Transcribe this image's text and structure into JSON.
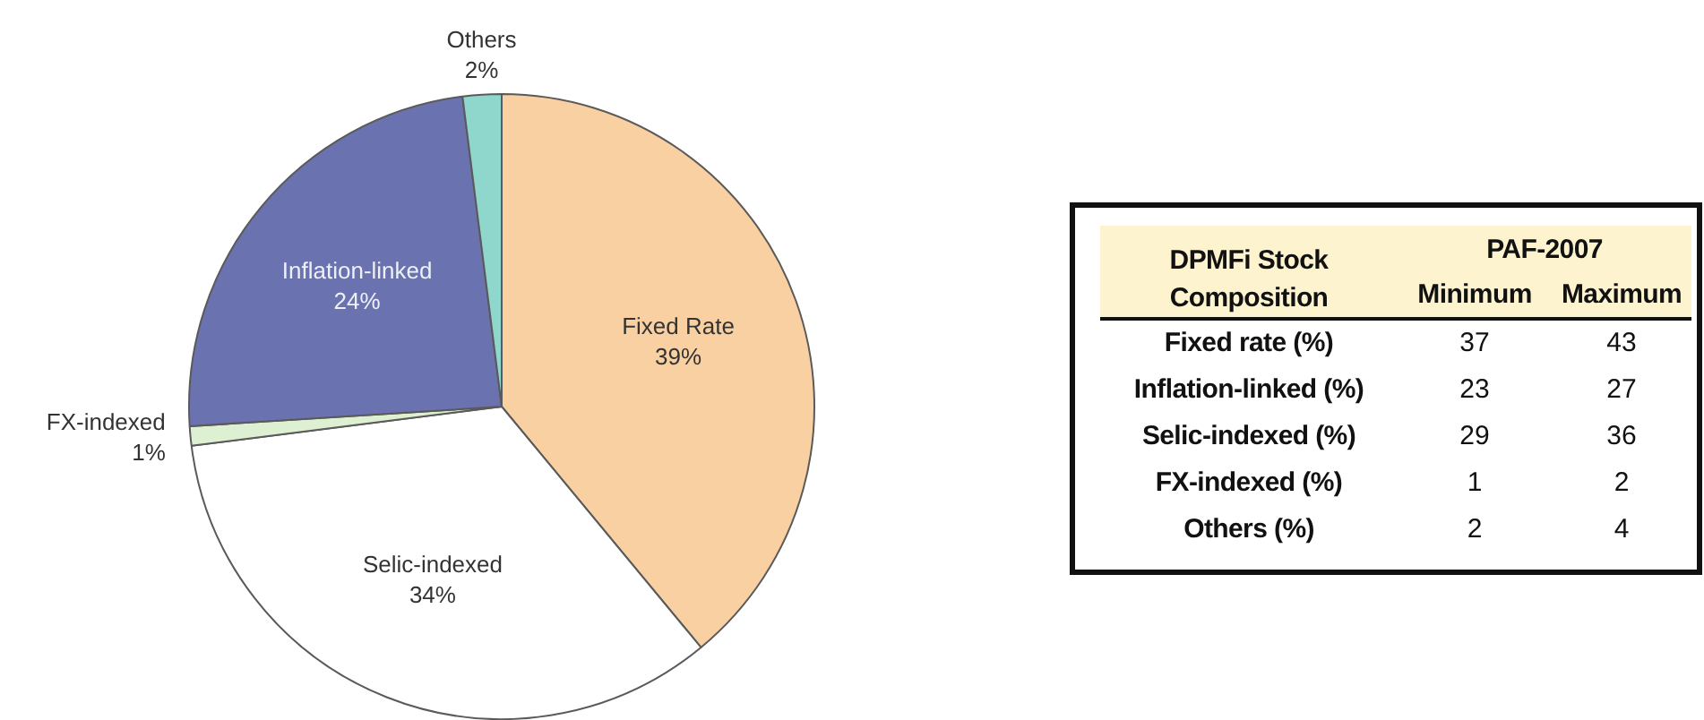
{
  "chart_data": [
    {
      "type": "pie",
      "categories": [
        "Fixed Rate",
        "Selic-indexed",
        "FX-indexed",
        "Inflation-linked",
        "Others"
      ],
      "values": [
        39,
        34,
        1,
        24,
        2
      ],
      "colors": [
        "#f9d0a2",
        "#ffffff",
        "#ddf0d2",
        "#6b72b0",
        "#8fd6cc"
      ],
      "value_labels": [
        "39%",
        "34%",
        "1%",
        "24%",
        "2%"
      ]
    },
    {
      "type": "other",
      "title": "DPMFi Stock Composition",
      "legend_title": "PAF-2007",
      "categories": [
        "Fixed rate (%)",
        "Inflation-linked (%)",
        "Selic-indexed (%)",
        "FX-indexed (%)",
        "Others (%)"
      ],
      "series": [
        {
          "name": "Minimum",
          "values": [
            37,
            23,
            29,
            1,
            2
          ]
        },
        {
          "name": "Maximum",
          "values": [
            43,
            27,
            36,
            2,
            4
          ]
        }
      ],
      "data_labels": true
    }
  ]
}
